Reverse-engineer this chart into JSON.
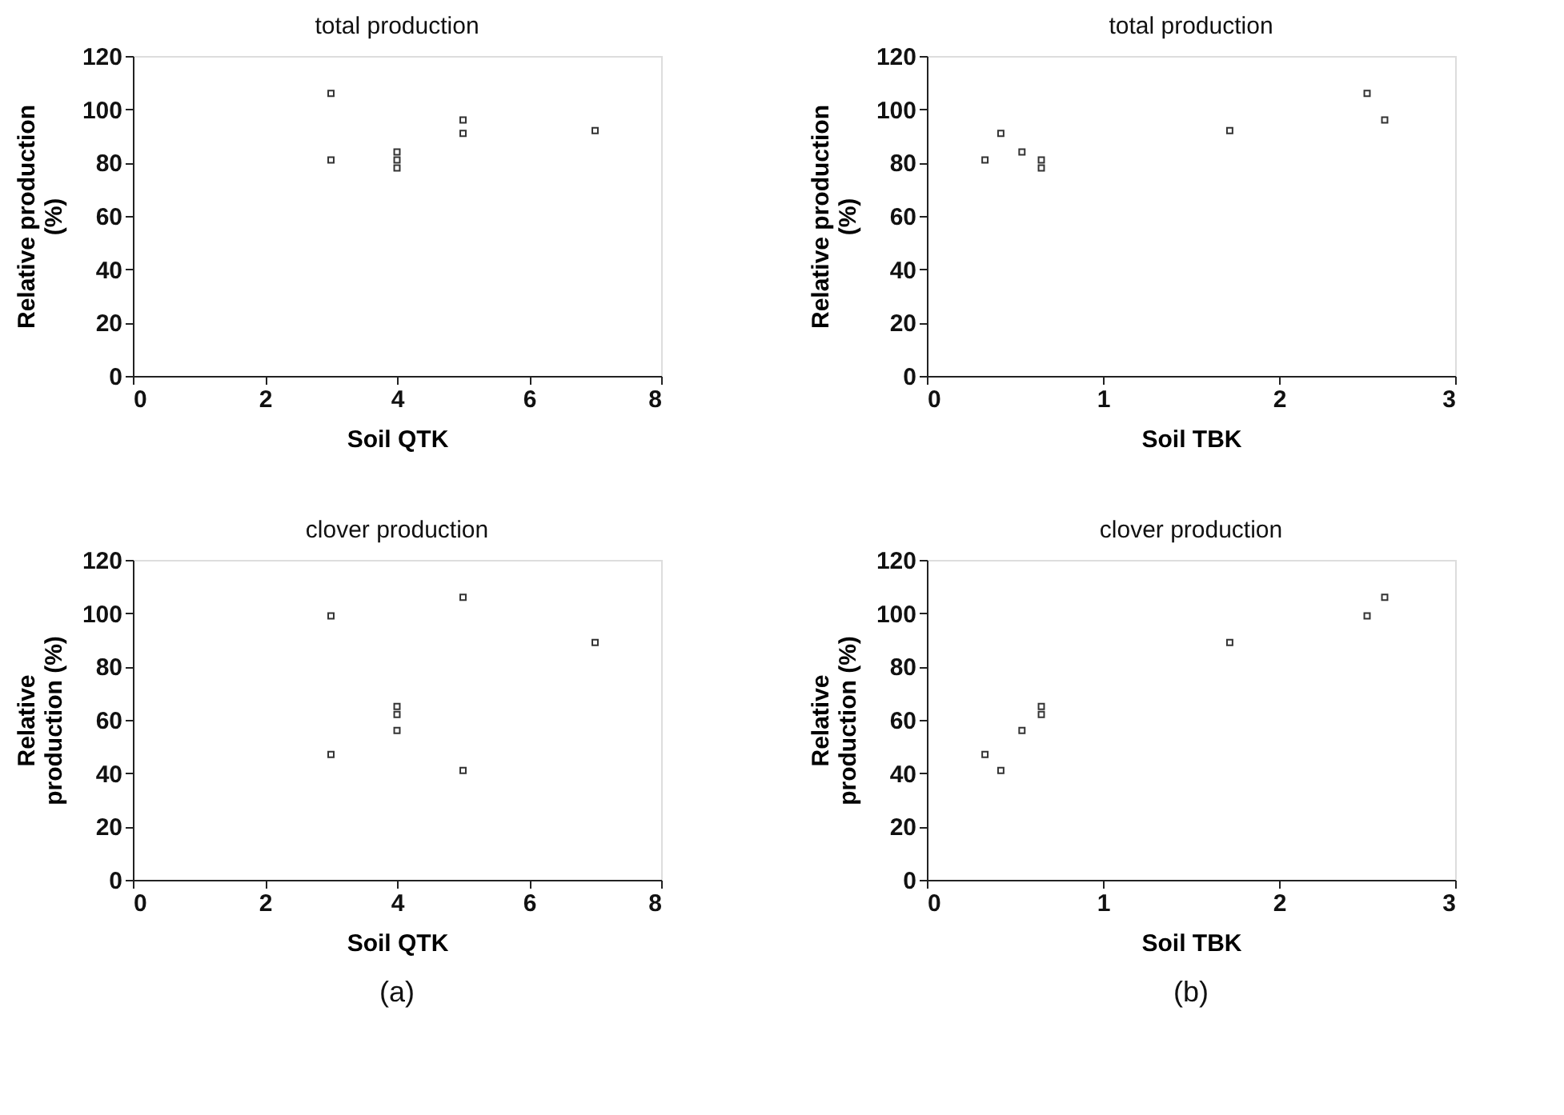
{
  "chart_data": [
    {
      "type": "scatter",
      "title": "total production",
      "xlabel": "Soil QTK",
      "ylabel": "Relative production\n(%)",
      "x": [
        3,
        3,
        4,
        4,
        4,
        5,
        5,
        7
      ],
      "series": [
        {
          "color": "#333333",
          "values": [
            106,
            81,
            84,
            81,
            78,
            96,
            91,
            92
          ]
        }
      ],
      "xlim": [
        0,
        8
      ],
      "xticks": [
        0,
        2,
        4,
        6,
        8
      ],
      "ylim": [
        0,
        120
      ],
      "yticks": [
        0,
        20,
        40,
        60,
        80,
        100,
        120
      ],
      "marker": "square",
      "grid": false
    },
    {
      "type": "scatter",
      "title": "total production",
      "xlabel": "Soil TBK",
      "ylabel": "Relative production\n(%)",
      "x": [
        0.33,
        0.42,
        0.54,
        0.65,
        0.65,
        1.72,
        2.5,
        2.6
      ],
      "series": [
        {
          "color": "#333333",
          "values": [
            81,
            91,
            84,
            81,
            78,
            92,
            106,
            96
          ]
        }
      ],
      "xlim": [
        0,
        3
      ],
      "xticks": [
        0,
        1,
        2,
        3
      ],
      "ylim": [
        0,
        120
      ],
      "yticks": [
        0,
        20,
        40,
        60,
        80,
        100,
        120
      ],
      "marker": "square",
      "grid": false
    },
    {
      "type": "scatter",
      "title": "clover production",
      "xlabel": "Soil QTK",
      "ylabel": "Relative\nproduction (%)",
      "x": [
        3,
        3,
        4,
        4,
        4,
        5,
        5,
        7
      ],
      "series": [
        {
          "color": "#333333",
          "values": [
            99,
            47,
            65,
            62,
            56,
            106,
            41,
            89
          ]
        }
      ],
      "xlim": [
        0,
        8
      ],
      "xticks": [
        0,
        2,
        4,
        6,
        8
      ],
      "ylim": [
        0,
        120
      ],
      "yticks": [
        0,
        20,
        40,
        60,
        80,
        100,
        120
      ],
      "marker": "square",
      "grid": false,
      "annotations": [
        "(a)"
      ]
    },
    {
      "type": "scatter",
      "title": "clover production",
      "xlabel": "Soil TBK",
      "ylabel": "Relative\nproduction (%)",
      "x": [
        0.33,
        0.42,
        0.54,
        0.65,
        0.65,
        1.72,
        2.5,
        2.6
      ],
      "series": [
        {
          "color": "#333333",
          "values": [
            47,
            41,
            56,
            65,
            62,
            89,
            99,
            106
          ]
        }
      ],
      "xlim": [
        0,
        3
      ],
      "xticks": [
        0,
        1,
        2,
        3
      ],
      "ylim": [
        0,
        120
      ],
      "yticks": [
        0,
        20,
        40,
        60,
        80,
        100,
        120
      ],
      "marker": "square",
      "grid": false,
      "annotations": [
        "(b)"
      ]
    }
  ]
}
